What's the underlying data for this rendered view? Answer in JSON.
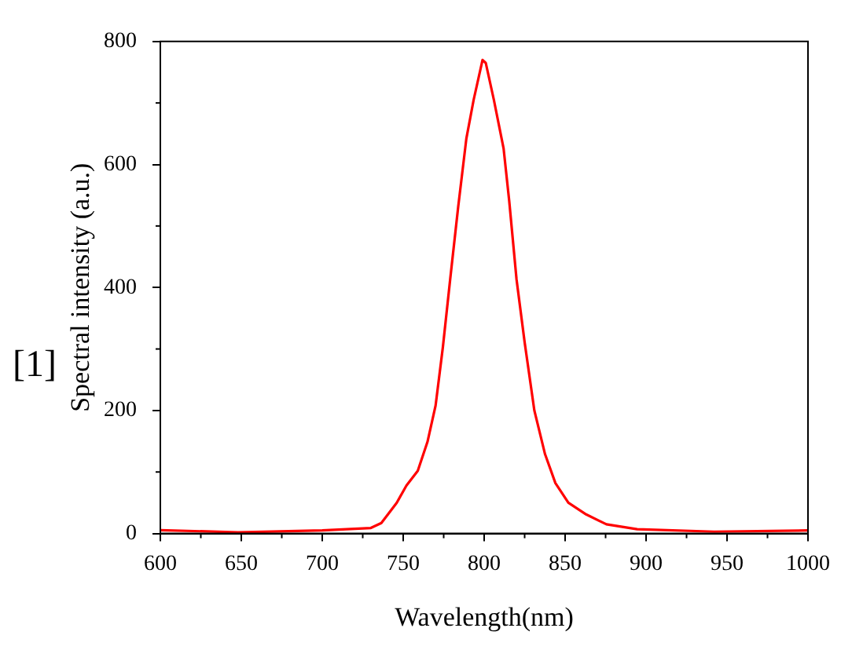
{
  "chart_data": {
    "type": "line",
    "xlabel": "Wavelength(nm)",
    "ylabel": "Spectral intensity (a.u.)",
    "annotations": [
      "[1]"
    ],
    "xlim": [
      600,
      1000
    ],
    "xticks": [
      600,
      650,
      700,
      750,
      800,
      850,
      900,
      950,
      1000
    ],
    "ylim": [
      0,
      800
    ],
    "yticks": [
      0,
      200,
      400,
      600,
      800
    ],
    "grid": false,
    "legend": false,
    "marker": "none",
    "line_style": "solid",
    "series": [
      {
        "color": "#ff0000",
        "x": [
          600,
          648,
          700,
          730,
          736.5,
          746,
          752,
          759,
          765,
          770,
          774.5,
          779,
          784,
          789,
          793.5,
          799,
          801,
          806,
          812,
          815.5,
          820,
          825,
          831,
          837.6,
          844,
          852,
          863,
          875.5,
          894.5,
          942,
          1000
        ],
        "values": [
          5.5,
          2,
          5,
          9,
          17,
          50,
          78,
          102,
          149,
          208,
          303,
          413,
          532,
          642,
          705,
          770,
          765,
          705,
          626,
          540,
          413,
          311,
          200,
          129,
          82,
          50,
          31,
          15,
          7,
          3,
          5
        ]
      }
    ]
  }
}
